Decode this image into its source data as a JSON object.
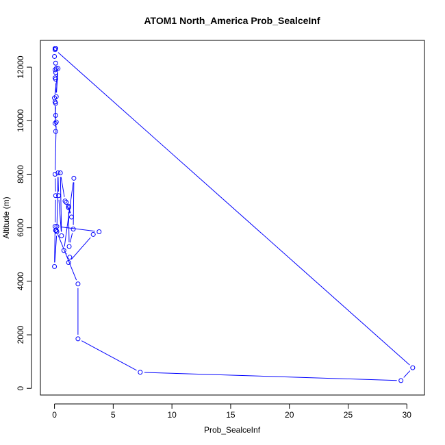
{
  "chart_data": {
    "type": "line",
    "title": "ATOM1 North_America Prob_SealceInf",
    "xlabel": "Prob_SealceInf",
    "ylabel": "Altitude (m)",
    "xlim": [
      -1.2,
      31.5
    ],
    "ylim": [
      -250,
      13000
    ],
    "xticks": [
      0,
      5,
      10,
      15,
      20,
      25,
      30
    ],
    "yticks": [
      0,
      2000,
      4000,
      6000,
      8000,
      10000,
      12000
    ],
    "grid": false,
    "series": [
      {
        "color": "#0000ff",
        "marker": "open-circle",
        "x": [
          0.05,
          0.1,
          0.0,
          0.1,
          0.05,
          0.15,
          0.1,
          0.05,
          0.1,
          0.15,
          0.3,
          0.0,
          0.05,
          0.1,
          0.05,
          0.1,
          0.05,
          0.1,
          0.15,
          0.05,
          0.1,
          0.05,
          0.0,
          0.2,
          0.3,
          0.35,
          0.6,
          0.5,
          0.9,
          1.2,
          1.45,
          1.0,
          1.2,
          1.25,
          1.6,
          1.65,
          0.8,
          1.3,
          1.2,
          3.3,
          3.8,
          0.2,
          0.1,
          0.15,
          2.0,
          2.0,
          7.3,
          29.5,
          30.5,
          0.05
        ],
        "y": [
          12700,
          12700,
          12400,
          12150,
          11900,
          11950,
          11800,
          11600,
          11550,
          10900,
          11950,
          10850,
          10700,
          10650,
          9900,
          9600,
          10700,
          10200,
          9950,
          8000,
          7200,
          6050,
          4550,
          5850,
          8050,
          7200,
          5700,
          8050,
          7000,
          6800,
          6400,
          6950,
          6750,
          5300,
          5950,
          7850,
          5150,
          4900,
          4700,
          5750,
          5850,
          6050,
          5900,
          5900,
          3900,
          1850,
          600,
          290,
          770,
          12650
        ]
      }
    ]
  }
}
